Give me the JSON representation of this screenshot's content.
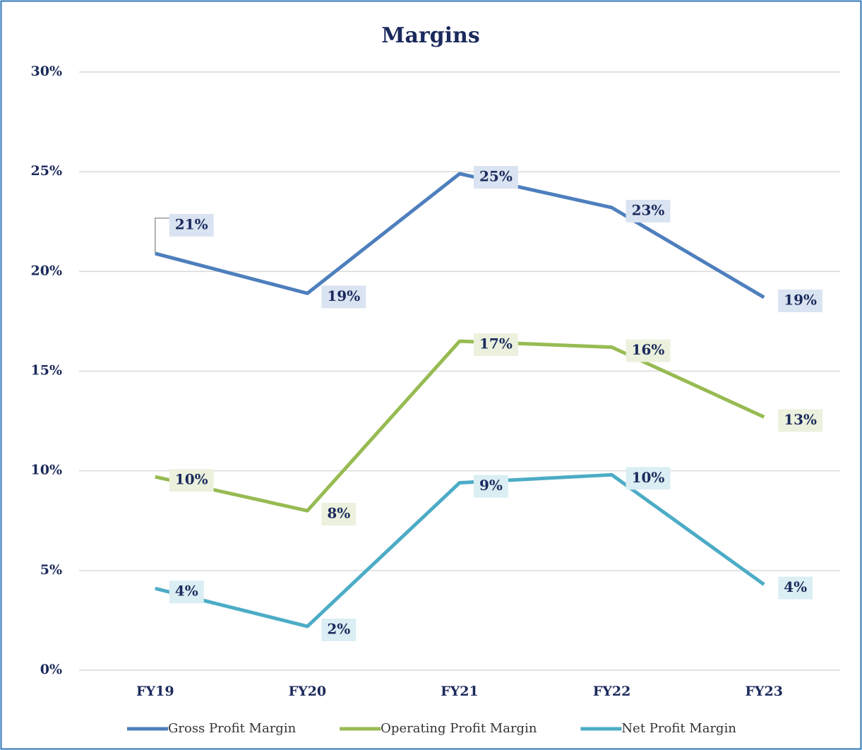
{
  "chart_data": {
    "type": "line",
    "title": "Margins",
    "categories": [
      "FY19",
      "FY20",
      "FY21",
      "FY22",
      "FY23"
    ],
    "series": [
      {
        "name": "Gross Profit Margin",
        "color": "#4e7fbd",
        "values": [
          20.9,
          18.9,
          24.9,
          23.2,
          18.7
        ],
        "value_labels": [
          "21%",
          "19%",
          "25%",
          "23%",
          "19%"
        ]
      },
      {
        "name": "Operating Profit Margin",
        "color": "#97bb52",
        "values": [
          9.7,
          8.0,
          16.5,
          16.2,
          12.7
        ],
        "value_labels": [
          "10%",
          "8%",
          "17%",
          "16%",
          "13%"
        ]
      },
      {
        "name": "Net Profit Margin",
        "color": "#4cacc6",
        "values": [
          4.1,
          2.2,
          9.4,
          9.8,
          4.3
        ],
        "value_labels": [
          "4%",
          "2%",
          "9%",
          "10%",
          "4%"
        ]
      }
    ],
    "ylim": [
      0,
      30
    ],
    "yticks": [
      {
        "value": 0,
        "label": "0%"
      },
      {
        "value": 5,
        "label": "5%"
      },
      {
        "value": 10,
        "label": "10%"
      },
      {
        "value": 15,
        "label": "15%"
      },
      {
        "value": 20,
        "label": "20%"
      },
      {
        "value": 25,
        "label": "25%"
      },
      {
        "value": 30,
        "label": "30%"
      }
    ],
    "grid": true,
    "legend": "bottom"
  }
}
